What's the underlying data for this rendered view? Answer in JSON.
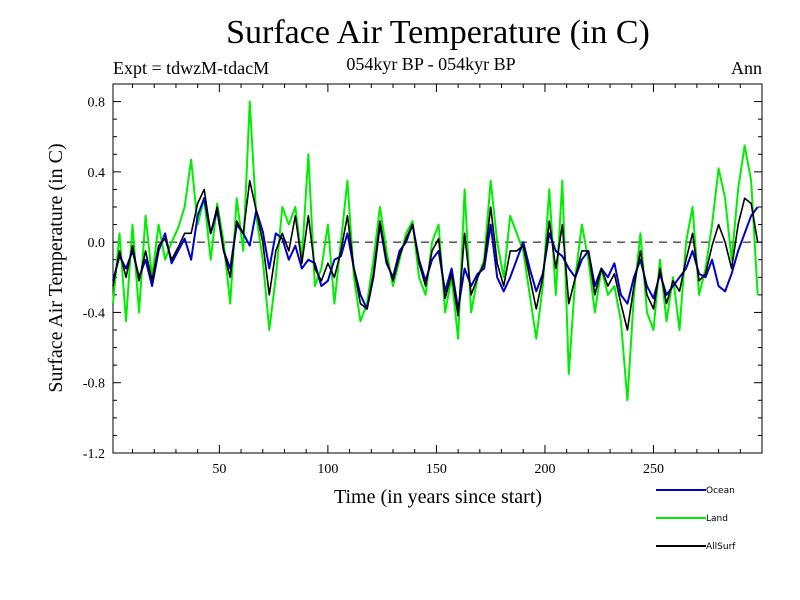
{
  "title": "Surface Air Temperature (in C)",
  "subtitle_left": "Expt = tdwzM-tdacM",
  "subtitle_center": "054kyr BP - 054kyr BP",
  "subtitle_right": "Ann",
  "chart_data": {
    "type": "line",
    "xlabel": "Time (in years since start)",
    "ylabel": "Surface Air Temperature (in C)",
    "xlim": [
      1,
      300
    ],
    "ylim": [
      -1.2,
      0.9
    ],
    "xticks": [
      50,
      100,
      150,
      200,
      250
    ],
    "yticks": [
      0.8,
      0.4,
      0.0,
      -0.4,
      -0.8,
      -1.2
    ],
    "ytick_labels": [
      "0.8",
      "0.4",
      "0.0",
      "-0.4",
      "-0.8",
      "-1.2"
    ],
    "zero_line": "dashed",
    "legend_position": "bottom-right",
    "series": [
      {
        "name": "Ocean",
        "color": "#0000cc",
        "x_start": 1,
        "x_step": 3,
        "values": [
          -0.22,
          -0.08,
          -0.15,
          -0.05,
          -0.2,
          -0.1,
          -0.25,
          -0.05,
          0.05,
          -0.12,
          -0.05,
          0.02,
          -0.1,
          0.15,
          0.25,
          0.05,
          0.18,
          -0.05,
          -0.15,
          0.1,
          0.05,
          -0.02,
          0.18,
          0.06,
          -0.15,
          0.05,
          0.02,
          -0.1,
          -0.02,
          -0.15,
          -0.1,
          -0.12,
          -0.25,
          -0.22,
          -0.1,
          -0.08,
          0.05,
          -0.15,
          -0.3,
          -0.38,
          -0.2,
          0.1,
          -0.12,
          -0.2,
          -0.05,
          0.0,
          0.1,
          -0.1,
          -0.22,
          -0.1,
          -0.05,
          -0.28,
          -0.15,
          -0.38,
          -0.15,
          -0.25,
          -0.18,
          -0.15,
          0.1,
          -0.2,
          -0.28,
          -0.2,
          -0.1,
          0.0,
          -0.15,
          -0.28,
          -0.18,
          0.05,
          -0.05,
          -0.08,
          -0.15,
          -0.2,
          -0.1,
          -0.05,
          -0.25,
          -0.15,
          -0.2,
          -0.12,
          -0.3,
          -0.35,
          -0.2,
          -0.1,
          -0.25,
          -0.32,
          -0.18,
          -0.3,
          -0.25,
          -0.2,
          -0.15,
          -0.05,
          -0.18,
          -0.2,
          -0.1,
          -0.25,
          -0.28,
          -0.18,
          -0.05,
          0.05,
          0.15,
          0.2
        ]
      },
      {
        "name": "Land",
        "color": "#00ee00",
        "x_start": 1,
        "x_step": 3,
        "values": [
          -0.35,
          0.05,
          -0.45,
          0.1,
          -0.4,
          0.15,
          -0.2,
          0.1,
          -0.1,
          0.0,
          0.08,
          0.2,
          0.47,
          0.1,
          0.25,
          -0.1,
          0.22,
          0.0,
          -0.35,
          0.25,
          -0.05,
          0.8,
          0.15,
          -0.1,
          -0.5,
          -0.2,
          0.2,
          0.1,
          0.2,
          -0.1,
          0.5,
          -0.25,
          -0.15,
          0.1,
          -0.35,
          0.0,
          0.35,
          -0.2,
          -0.45,
          -0.35,
          -0.1,
          0.2,
          -0.05,
          -0.25,
          -0.1,
          0.05,
          0.12,
          -0.2,
          -0.3,
          0.0,
          0.1,
          -0.4,
          -0.2,
          -0.55,
          0.3,
          -0.4,
          -0.2,
          -0.1,
          0.35,
          0.0,
          -0.2,
          0.15,
          0.05,
          -0.05,
          -0.3,
          -0.55,
          -0.25,
          0.3,
          -0.3,
          0.35,
          -0.75,
          -0.2,
          0.1,
          -0.1,
          -0.4,
          -0.15,
          -0.3,
          -0.25,
          -0.45,
          -0.9,
          -0.3,
          0.05,
          -0.4,
          -0.5,
          -0.1,
          -0.45,
          -0.2,
          -0.5,
          0.0,
          0.2,
          -0.3,
          -0.15,
          0.1,
          0.42,
          0.25,
          -0.1,
          0.3,
          0.55,
          0.35,
          -0.3
        ]
      },
      {
        "name": "AllSurf",
        "color": "#000000",
        "x_start": 1,
        "x_step": 3,
        "values": [
          -0.25,
          -0.05,
          -0.2,
          -0.02,
          -0.22,
          -0.05,
          -0.22,
          -0.02,
          0.02,
          -0.1,
          -0.03,
          0.05,
          0.05,
          0.22,
          0.3,
          0.05,
          0.2,
          -0.05,
          -0.2,
          0.12,
          0.05,
          0.35,
          0.18,
          0.0,
          -0.3,
          -0.05,
          0.05,
          -0.05,
          0.15,
          -0.12,
          0.15,
          -0.15,
          -0.22,
          -0.12,
          -0.2,
          -0.05,
          0.15,
          -0.15,
          -0.35,
          -0.38,
          -0.18,
          0.12,
          -0.1,
          -0.22,
          -0.08,
          0.02,
          0.1,
          -0.12,
          -0.25,
          -0.05,
          0.02,
          -0.32,
          -0.18,
          -0.42,
          0.05,
          -0.3,
          -0.2,
          -0.12,
          0.2,
          -0.12,
          -0.25,
          -0.05,
          -0.05,
          -0.02,
          -0.2,
          -0.38,
          -0.2,
          0.12,
          -0.15,
          0.1,
          -0.35,
          -0.2,
          -0.05,
          -0.05,
          -0.3,
          -0.15,
          -0.25,
          -0.18,
          -0.35,
          -0.5,
          -0.25,
          -0.05,
          -0.3,
          -0.38,
          -0.15,
          -0.35,
          -0.22,
          -0.28,
          -0.1,
          0.05,
          -0.22,
          -0.18,
          -0.02,
          0.1,
          0.0,
          -0.15,
          0.1,
          0.25,
          0.22,
          0.0
        ]
      }
    ]
  }
}
